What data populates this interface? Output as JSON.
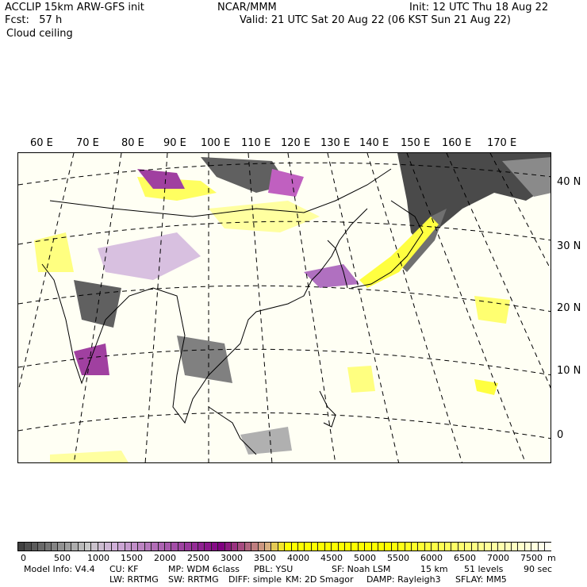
{
  "header": {
    "model": "ACCLIP 15km ARW-GFS init",
    "org": "NCAR/MMM",
    "init": "Init: 12 UTC Thu 18 Aug 22",
    "fcst": "Fcst:   57 h",
    "valid": "Valid: 21 UTC Sat 20 Aug 22 (06 KST Sun 21 Aug 22)",
    "field": "Cloud ceiling"
  },
  "map": {
    "lon_labels": [
      "60 E",
      "70 E",
      "80 E",
      "90 E",
      "100 E",
      "110 E",
      "120 E",
      "130 E",
      "140 E",
      "150 E",
      "160 E",
      "170 E"
    ],
    "lat_labels": [
      "40 N",
      "30 N",
      "20 N",
      "10 N",
      "0"
    ]
  },
  "colorbar": {
    "min": 0,
    "max": 8000,
    "step": 100,
    "labels": [
      "0",
      "500",
      "1000",
      "1500",
      "2000",
      "2500",
      "3000",
      "3500",
      "4000",
      "4500",
      "5000",
      "5500",
      "6000",
      "6500",
      "7000",
      "7500"
    ],
    "unit": "m",
    "colors": {
      "low": "#404040",
      "gray_high": "#c8c8c8",
      "purple_light": "#d0b0d8",
      "purple_dark": "#800080",
      "tan": "#d8b080",
      "yellow": "#ffff00",
      "white": "#ffffff"
    }
  },
  "footer": {
    "model_info": "Model Info: V4.4",
    "cu": "CU: KF",
    "mp": "MP: WDM 6class",
    "pbl": "PBL: YSU",
    "sf": "SF: Noah LSM",
    "res": "15 km",
    "levels": "51 levels",
    "dt": "90 sec",
    "lw": "LW: RRTMG",
    "sw": "SW: RRTMG",
    "diff": "DIFF: simple",
    "km": "KM: 2D Smagor",
    "damp": "DAMP: Rayleigh3",
    "sflay": "SFLAY: MM5"
  }
}
